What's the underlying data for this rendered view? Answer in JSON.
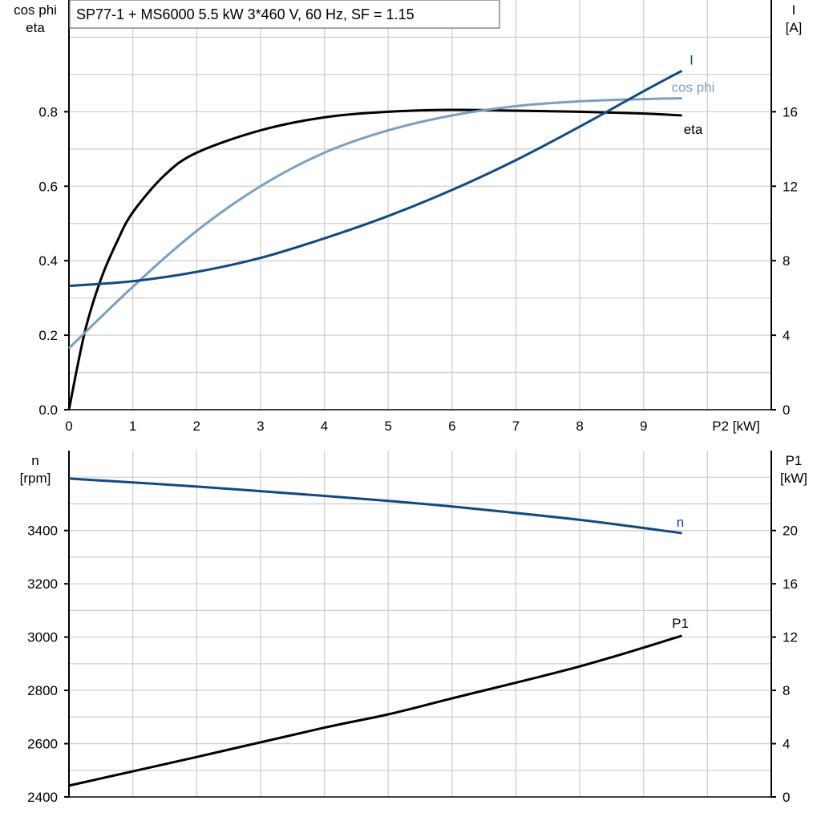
{
  "title": "SP77-1 + MS6000   5.5 kW   3*460 V, 60 Hz, SF = 1.15",
  "colors": {
    "eta": "#000000",
    "cos_phi": "#7a9fc0",
    "I": "#114a82",
    "n": "#114a82",
    "P1": "#000000",
    "grid": "#d0d0d0"
  },
  "chart_data": [
    {
      "type": "line",
      "xlabel": "P2 [kW]",
      "xlim": [
        0,
        11
      ],
      "xticks": [
        0,
        1,
        2,
        3,
        4,
        5,
        6,
        7,
        8,
        9
      ],
      "ylabel_left": [
        "cos phi",
        "eta"
      ],
      "ylim_left": [
        0,
        1.1
      ],
      "yticks_left": [
        "0.0",
        "0.2",
        "0.4",
        "0.6",
        "0.8"
      ],
      "ylabel_right": [
        "I",
        "[A]"
      ],
      "ylim_right": [
        0,
        22
      ],
      "yticks_right": [
        "0",
        "4",
        "8",
        "12",
        "16"
      ],
      "grid": true,
      "series": [
        {
          "name": "eta",
          "axis": "left",
          "x": [
            0,
            0.25,
            0.5,
            0.75,
            1,
            1.5,
            2,
            3,
            4,
            5,
            6,
            7,
            8,
            9,
            9.6
          ],
          "y": [
            0,
            0.21,
            0.35,
            0.45,
            0.53,
            0.63,
            0.69,
            0.75,
            0.785,
            0.8,
            0.805,
            0.803,
            0.8,
            0.795,
            0.79
          ]
        },
        {
          "name": "cos phi",
          "axis": "left",
          "x": [
            0,
            1,
            2,
            3,
            4,
            5,
            6,
            7,
            8,
            9,
            9.6
          ],
          "y": [
            0.165,
            0.33,
            0.48,
            0.6,
            0.69,
            0.75,
            0.79,
            0.815,
            0.828,
            0.834,
            0.836
          ]
        },
        {
          "name": "I",
          "axis": "right",
          "x": [
            0,
            1,
            2,
            3,
            4,
            5,
            6,
            7,
            8,
            9,
            9.6
          ],
          "y": [
            6.65,
            6.9,
            7.4,
            8.15,
            9.2,
            10.4,
            11.8,
            13.4,
            15.2,
            17.1,
            18.2
          ]
        }
      ]
    },
    {
      "type": "line",
      "xlim": [
        0,
        11
      ],
      "ylabel_left": [
        "n",
        "[rpm]"
      ],
      "ylim_left": [
        2400,
        3700
      ],
      "yticks_left": [
        "2400",
        "2600",
        "2800",
        "3000",
        "3200",
        "3400"
      ],
      "ylabel_right": [
        "P1",
        "[kW]"
      ],
      "ylim_right": [
        0,
        26
      ],
      "yticks_right": [
        "0",
        "4",
        "8",
        "12",
        "16",
        "20"
      ],
      "grid": true,
      "series": [
        {
          "name": "n",
          "axis": "left",
          "x": [
            0,
            2,
            4,
            5,
            6,
            8,
            9.6
          ],
          "y": [
            3595,
            3565,
            3530,
            3511,
            3490,
            3440,
            3390
          ]
        },
        {
          "name": "P1",
          "axis": "right",
          "x": [
            0,
            2,
            4,
            5,
            6,
            8,
            9.6
          ],
          "y": [
            0.85,
            3.0,
            5.2,
            6.2,
            7.4,
            9.8,
            12.1
          ]
        }
      ]
    }
  ]
}
